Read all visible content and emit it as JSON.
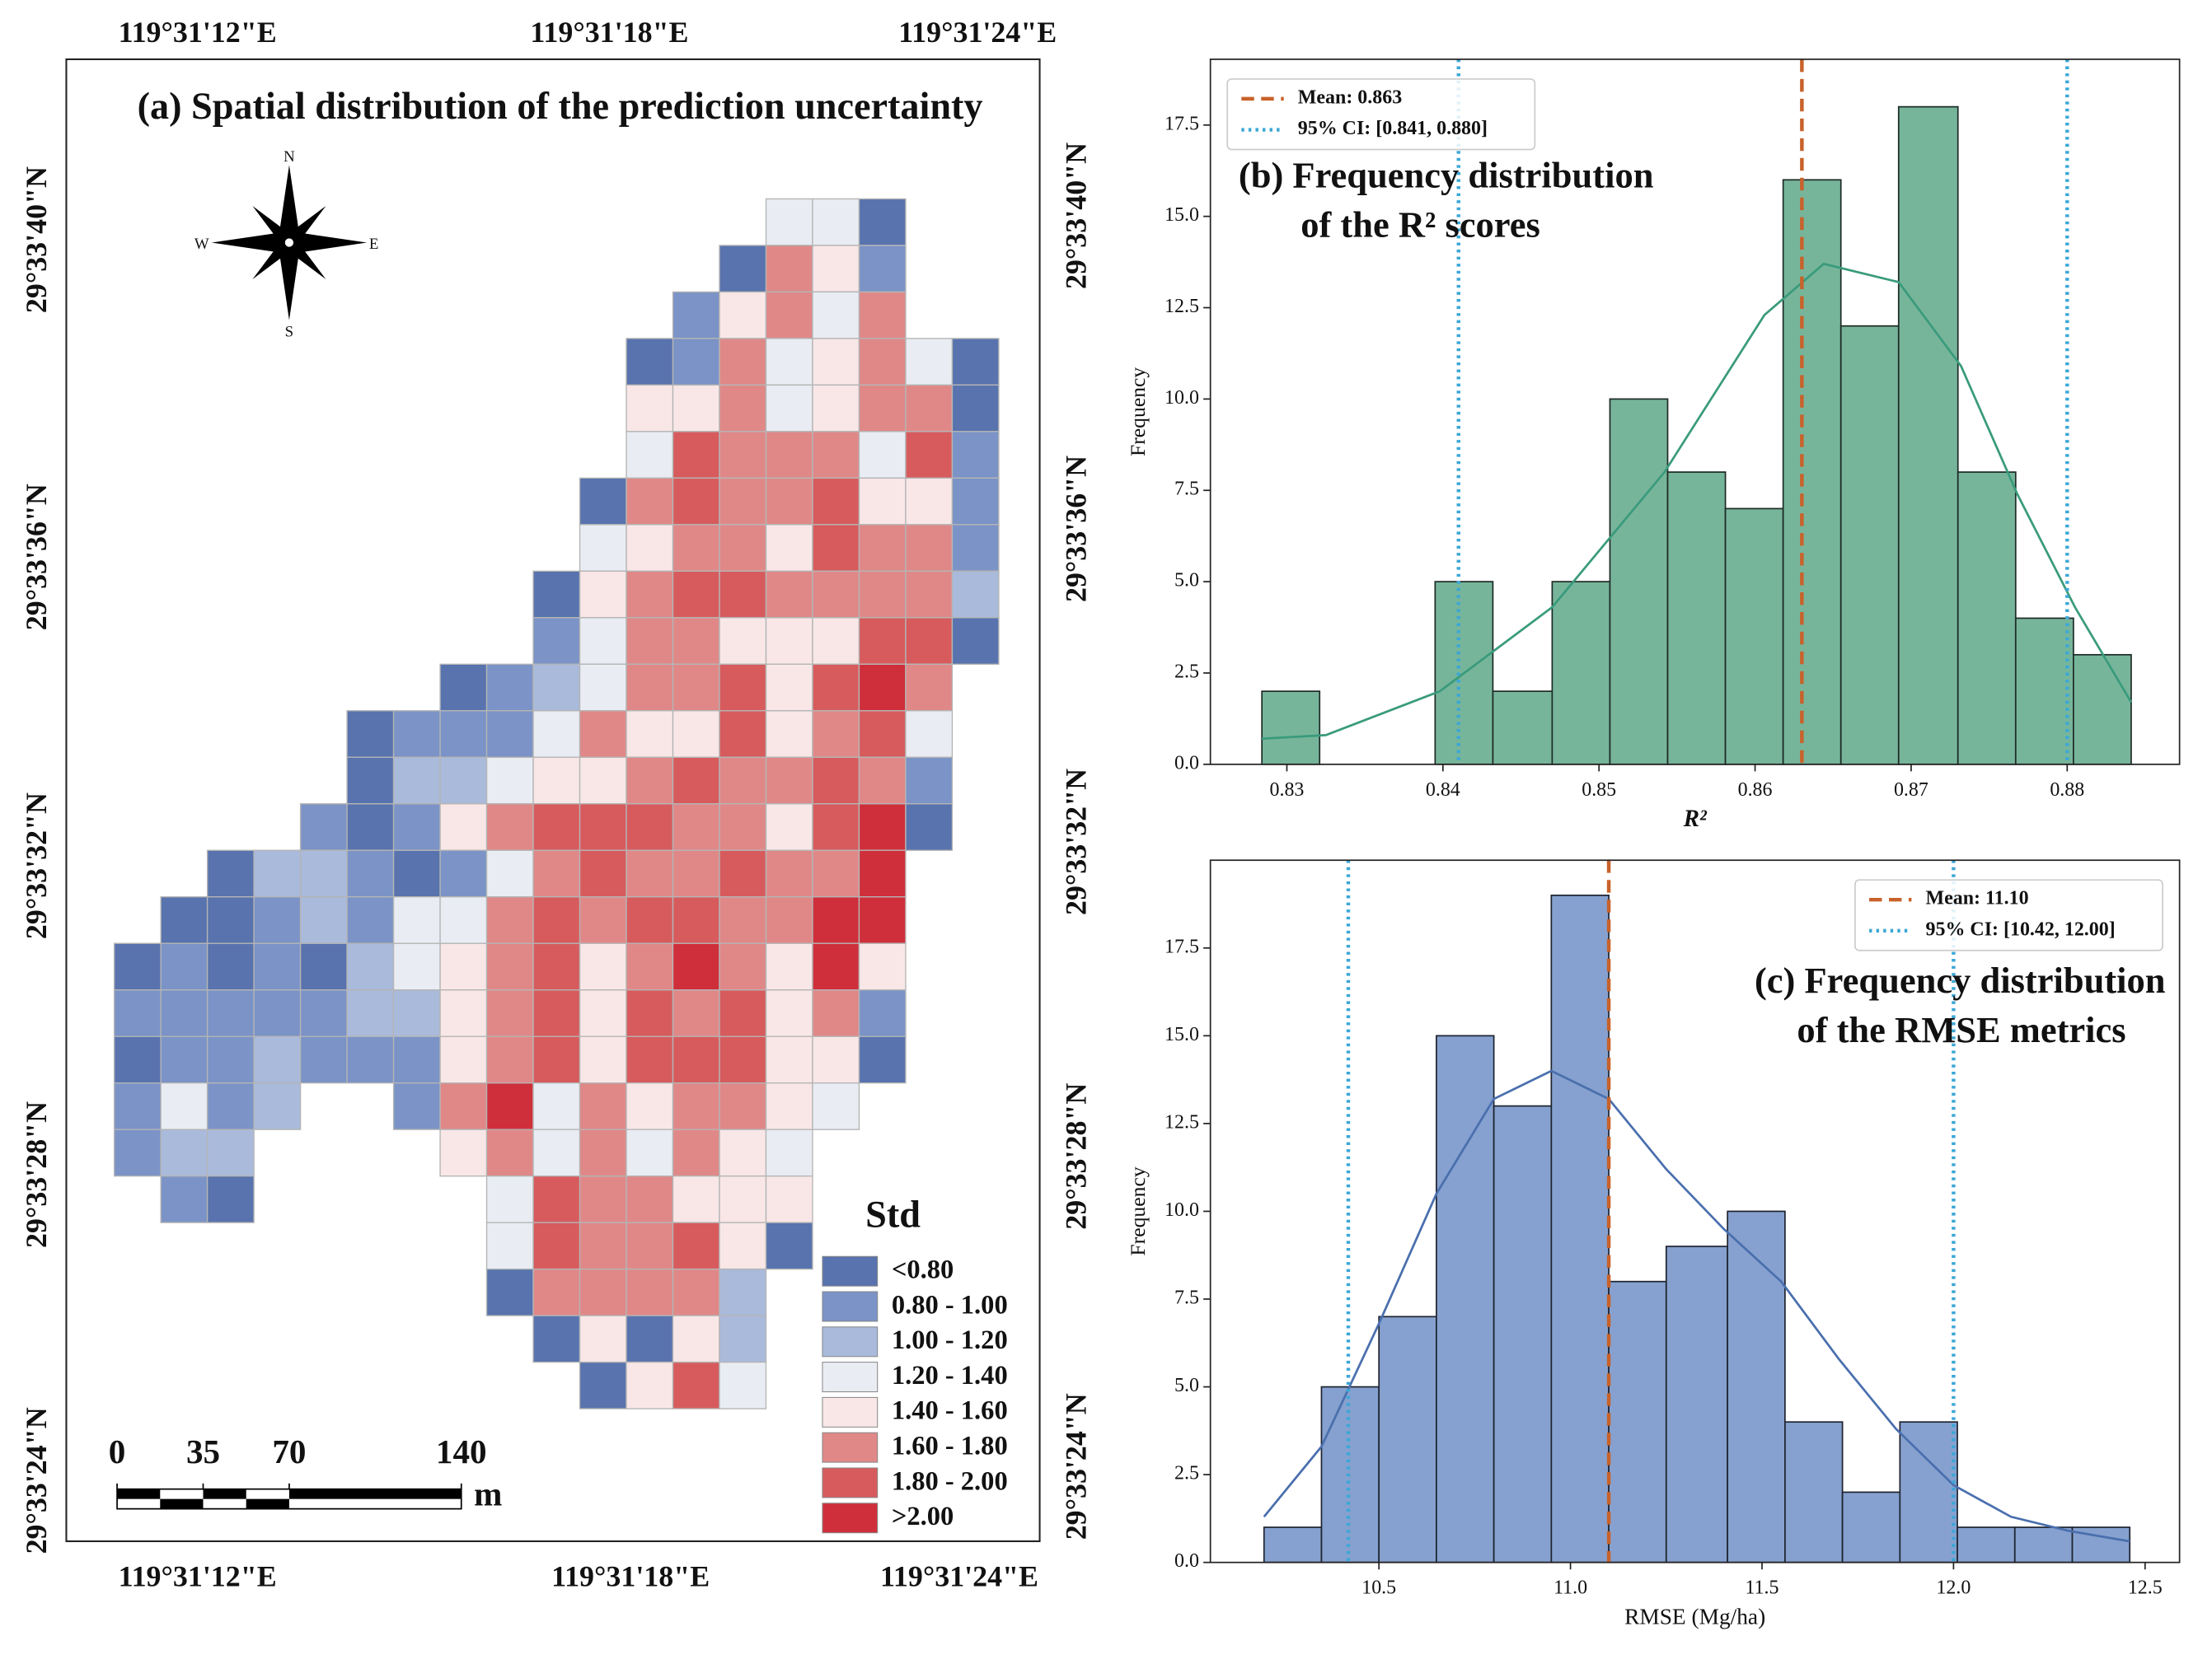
{
  "chart_data": [
    {
      "type": "map",
      "title": "(a) Spatial distribution of the prediction uncertainty",
      "lon_ticks": [
        "119°31'12\"E",
        "119°31'18\"E",
        "119°31'24\"E"
      ],
      "lat_ticks": [
        "29°33'40\"N",
        "29°33'36\"N",
        "29°33'32\"N",
        "29°33'28\"N",
        "29°33'24\"N"
      ],
      "compass": [
        "N",
        "E",
        "S",
        "W"
      ],
      "scale_bar": {
        "ticks": [
          0,
          35,
          70,
          140
        ],
        "unit": "m"
      },
      "legend_title": "Std",
      "legend_labels": [
        "<0.80",
        "0.80 - 1.00",
        "1.00 - 1.20",
        "1.20 - 1.40",
        "1.40 - 1.60",
        "1.60 - 1.80",
        "1.80 - 2.00",
        ">2.00"
      ],
      "colors": [
        "#5873ad",
        "#7b93c6",
        "#a9badb",
        "#e9edf3",
        "#f9e7e7",
        "#e08888",
        "#d75b5d",
        "#cf2f3a"
      ],
      "cells": [
        [
          null,
          null,
          null,
          null,
          null,
          null,
          null,
          null,
          null,
          null,
          null,
          null,
          null,
          null,
          3,
          3,
          0,
          null,
          null
        ],
        [
          null,
          null,
          null,
          null,
          null,
          null,
          null,
          null,
          null,
          null,
          null,
          null,
          null,
          0,
          5,
          4,
          1,
          null,
          null
        ],
        [
          null,
          null,
          null,
          null,
          null,
          null,
          null,
          null,
          null,
          null,
          null,
          null,
          1,
          4,
          5,
          3,
          5,
          null,
          null
        ],
        [
          null,
          null,
          null,
          null,
          null,
          null,
          null,
          null,
          null,
          null,
          null,
          0,
          1,
          5,
          3,
          4,
          5,
          3,
          0
        ],
        [
          null,
          null,
          null,
          null,
          null,
          null,
          null,
          null,
          null,
          null,
          null,
          4,
          4,
          5,
          3,
          4,
          5,
          5,
          0
        ],
        [
          null,
          null,
          null,
          null,
          null,
          null,
          null,
          null,
          null,
          null,
          null,
          3,
          6,
          5,
          5,
          5,
          3,
          6,
          1
        ],
        [
          null,
          null,
          null,
          null,
          null,
          null,
          null,
          null,
          null,
          null,
          0,
          5,
          6,
          5,
          5,
          6,
          4,
          4,
          1
        ],
        [
          null,
          null,
          null,
          null,
          null,
          null,
          null,
          null,
          null,
          null,
          3,
          4,
          5,
          5,
          4,
          6,
          5,
          5,
          1
        ],
        [
          null,
          null,
          null,
          null,
          null,
          null,
          null,
          null,
          null,
          0,
          4,
          5,
          6,
          6,
          5,
          5,
          5,
          5,
          2
        ],
        [
          null,
          null,
          null,
          null,
          null,
          null,
          null,
          null,
          null,
          1,
          3,
          5,
          5,
          4,
          4,
          4,
          6,
          6,
          0
        ],
        [
          null,
          null,
          null,
          null,
          null,
          null,
          null,
          0,
          1,
          2,
          3,
          5,
          5,
          6,
          4,
          6,
          7,
          5,
          null
        ],
        [
          null,
          null,
          null,
          null,
          null,
          0,
          1,
          1,
          1,
          3,
          5,
          4,
          4,
          6,
          4,
          5,
          6,
          3,
          null
        ],
        [
          null,
          null,
          null,
          null,
          null,
          0,
          2,
          2,
          3,
          4,
          4,
          5,
          6,
          5,
          5,
          6,
          5,
          1,
          null
        ],
        [
          null,
          null,
          null,
          null,
          1,
          0,
          1,
          4,
          5,
          6,
          6,
          6,
          5,
          5,
          4,
          6,
          7,
          0,
          null
        ],
        [
          null,
          null,
          0,
          2,
          2,
          1,
          0,
          1,
          3,
          5,
          6,
          5,
          5,
          6,
          5,
          5,
          7,
          null,
          null
        ],
        [
          null,
          0,
          0,
          1,
          2,
          1,
          3,
          3,
          5,
          6,
          5,
          6,
          6,
          5,
          5,
          7,
          7,
          null,
          null
        ],
        [
          0,
          1,
          0,
          1,
          0,
          2,
          3,
          4,
          5,
          6,
          4,
          5,
          7,
          5,
          4,
          7,
          4,
          null,
          null
        ],
        [
          1,
          1,
          1,
          1,
          1,
          2,
          2,
          4,
          5,
          6,
          4,
          6,
          5,
          6,
          4,
          5,
          1,
          null,
          null
        ],
        [
          0,
          1,
          1,
          2,
          1,
          1,
          1,
          4,
          5,
          6,
          4,
          6,
          6,
          6,
          4,
          4,
          0,
          null,
          null
        ],
        [
          1,
          3,
          1,
          2,
          null,
          null,
          1,
          5,
          7,
          3,
          5,
          4,
          5,
          5,
          4,
          3,
          null,
          null,
          null
        ],
        [
          1,
          2,
          2,
          null,
          null,
          null,
          null,
          4,
          5,
          3,
          5,
          3,
          5,
          4,
          3,
          null,
          null,
          null,
          null
        ],
        [
          null,
          1,
          0,
          null,
          null,
          null,
          null,
          null,
          3,
          6,
          5,
          5,
          4,
          4,
          4,
          null,
          null,
          null,
          null
        ],
        [
          null,
          null,
          null,
          null,
          null,
          null,
          null,
          null,
          3,
          6,
          5,
          5,
          6,
          4,
          0,
          null,
          null,
          null,
          null
        ],
        [
          null,
          null,
          null,
          null,
          null,
          null,
          null,
          null,
          0,
          5,
          5,
          5,
          5,
          2,
          null,
          null,
          null,
          null,
          null
        ],
        [
          null,
          null,
          null,
          null,
          null,
          null,
          null,
          null,
          null,
          0,
          4,
          0,
          4,
          2,
          null,
          null,
          null,
          null,
          null
        ],
        [
          null,
          null,
          null,
          null,
          null,
          null,
          null,
          null,
          null,
          null,
          0,
          4,
          6,
          3,
          null,
          null,
          null,
          null,
          null
        ]
      ]
    },
    {
      "type": "histogram",
      "title": [
        "(b) Frequency distribution",
        "of the R² scores"
      ],
      "xlabel": "R²",
      "ylabel": "Frequency",
      "bins": [
        0.8284,
        0.8321,
        0.8358,
        0.8395,
        0.8432,
        0.847,
        0.8507,
        0.8544,
        0.8581,
        0.8618,
        0.8655,
        0.8692,
        0.873,
        0.8767,
        0.8804,
        0.8841
      ],
      "counts": [
        2,
        0,
        0,
        5,
        2,
        5,
        10,
        8,
        7,
        16,
        12,
        18,
        8,
        4,
        3
      ],
      "color": "#77b59b",
      "edge_color": "#1e2b26",
      "kde": {
        "color": "#3a9b7c",
        "x": [
          0.8284,
          0.8325,
          0.8398,
          0.847,
          0.8542,
          0.8606,
          0.8644,
          0.8692,
          0.8732,
          0.8768,
          0.8805,
          0.8841
        ],
        "y": [
          0.7,
          0.8,
          2.0,
          4.3,
          8.0,
          12.3,
          13.7,
          13.2,
          10.9,
          7.4,
          4.3,
          1.7
        ]
      },
      "lines": [
        {
          "name": "Mean: 0.863",
          "values": [
            0.863
          ],
          "color": "#c8622a",
          "dash": "dashed"
        },
        {
          "name": "95% CI: [0.841, 0.880]",
          "values": [
            0.841,
            0.88
          ],
          "color": "#3ba7d6",
          "dash": "dotted"
        }
      ],
      "legend": "upper left",
      "xlim": [
        0.8251,
        0.8872
      ],
      "ylim": [
        0,
        19.3
      ],
      "xticks": [
        0.83,
        0.84,
        0.85,
        0.86,
        0.87,
        0.88
      ],
      "yticks": [
        {
          "value": 0,
          "label": "0.0"
        },
        2.5,
        {
          "value": 5,
          "label": "5.0"
        },
        7.5,
        {
          "value": 10,
          "label": "10.0"
        },
        12.5,
        {
          "value": 15,
          "label": "15.0"
        },
        17.5
      ]
    },
    {
      "type": "histogram",
      "title": [
        "(c) Frequency distribution",
        "of the RMSE metrics"
      ],
      "xlabel": "RMSE (Mg/ha)",
      "ylabel": "Frequency",
      "bins": [
        10.2,
        10.35,
        10.5,
        10.65,
        10.8,
        10.95,
        11.1,
        11.25,
        11.41,
        11.56,
        11.71,
        11.86,
        12.01,
        12.16,
        12.31,
        12.46
      ],
      "counts": [
        1,
        5,
        7,
        15,
        13,
        19,
        8,
        9,
        10,
        4,
        2,
        4,
        1,
        1,
        1
      ],
      "color": "#86a1cf",
      "edge_color": "#1e2430",
      "kde": {
        "color": "#4a6fae",
        "x": [
          10.2,
          10.35,
          10.5,
          10.65,
          10.8,
          10.95,
          11.1,
          11.25,
          11.4,
          11.55,
          11.7,
          11.85,
          12.0,
          12.15,
          12.3,
          12.46
        ],
        "y": [
          1.3,
          3.3,
          6.8,
          10.5,
          13.2,
          14.0,
          13.2,
          11.2,
          9.5,
          8.0,
          5.8,
          3.8,
          2.2,
          1.3,
          0.9,
          0.6
        ]
      },
      "lines": [
        {
          "name": "Mean: 11.10",
          "values": [
            11.1
          ],
          "color": "#c8622a",
          "dash": "dashed"
        },
        {
          "name": "95% CI: [10.42, 12.00]",
          "values": [
            10.42,
            12.0
          ],
          "color": "#3ba7d6",
          "dash": "dotted"
        }
      ],
      "legend": "upper right",
      "xlim": [
        10.06,
        12.59
      ],
      "ylim": [
        0,
        20
      ],
      "xticks": [
        10.5,
        {
          "value": 11,
          "label": "11.0"
        },
        11.5,
        {
          "value": 12,
          "label": "12.0"
        },
        12.5
      ],
      "yticks": [
        {
          "value": 0,
          "label": "0.0"
        },
        2.5,
        {
          "value": 5,
          "label": "5.0"
        },
        7.5,
        {
          "value": 10,
          "label": "10.0"
        },
        12.5,
        {
          "value": 15,
          "label": "15.0"
        },
        17.5
      ]
    }
  ]
}
